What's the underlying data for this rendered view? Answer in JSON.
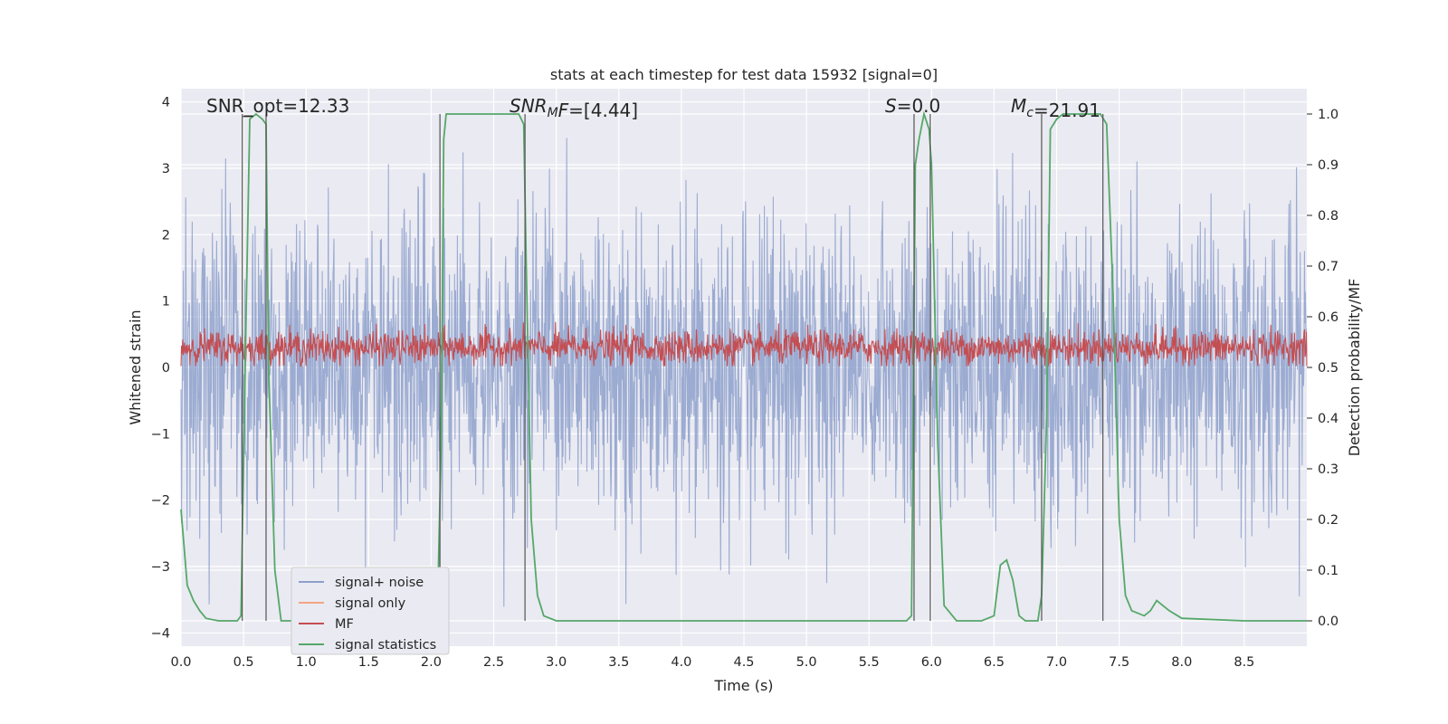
{
  "chart_data": {
    "type": "line",
    "title": "stats at each timestep for test data 15932 [signal=0]",
    "xlabel": "Time (s)",
    "ylabel_left": "Whitened strain",
    "ylabel_right": "Detection probability/MF",
    "xlim": [
      0.0,
      9.0
    ],
    "ylim_left": [
      -4.2,
      4.2
    ],
    "ylim_right": [
      -0.05,
      1.05
    ],
    "xticks": [
      "0.0",
      "0.5",
      "1.0",
      "1.5",
      "2.0",
      "2.5",
      "3.0",
      "3.5",
      "4.0",
      "4.5",
      "5.0",
      "5.5",
      "6.0",
      "6.5",
      "7.0",
      "7.5",
      "8.0",
      "8.5"
    ],
    "yticks_left": [
      "4",
      "3",
      "2",
      "1",
      "0",
      "−1",
      "−2",
      "−3",
      "−4"
    ],
    "yticks_right": [
      "1.0",
      "0.9",
      "0.8",
      "0.7",
      "0.6",
      "0.5",
      "0.4",
      "0.3",
      "0.2",
      "0.1",
      "0.0"
    ],
    "grid": true,
    "legend_position": "lower-left",
    "series": [
      {
        "name": "signal+ noise",
        "color": "#8da0cb",
        "axis": "left",
        "description_values": "whitened noise, amplitude roughly ±2 to ±4"
      },
      {
        "name": "signal only",
        "color": "#f4a582",
        "axis": "left",
        "values": []
      },
      {
        "name": "MF",
        "color": "#c44e52",
        "axis": "left",
        "description_values": "matched filter output around 0.1 to 0.7"
      },
      {
        "name": "signal statistics",
        "color": "#55a868",
        "axis": "right",
        "x": [
          0.0,
          0.05,
          0.1,
          0.15,
          0.2,
          0.3,
          0.4,
          0.45,
          0.48,
          0.52,
          0.55,
          0.6,
          0.65,
          0.68,
          0.7,
          0.75,
          0.8,
          0.9,
          1.0,
          1.5,
          2.0,
          2.05,
          2.08,
          2.1,
          2.12,
          2.15,
          2.3,
          2.6,
          2.7,
          2.74,
          2.76,
          2.8,
          2.85,
          2.9,
          3.0,
          4.0,
          5.0,
          5.5,
          5.8,
          5.84,
          5.87,
          5.9,
          5.94,
          5.98,
          6.0,
          6.05,
          6.1,
          6.2,
          6.3,
          6.4,
          6.5,
          6.55,
          6.6,
          6.65,
          6.7,
          6.75,
          6.8,
          6.85,
          6.88,
          6.92,
          6.95,
          7.0,
          7.05,
          7.3,
          7.35,
          7.4,
          7.45,
          7.5,
          7.55,
          7.6,
          7.7,
          7.75,
          7.8,
          7.85,
          7.9,
          8.0,
          8.5,
          9.0
        ],
        "y": [
          0.22,
          0.07,
          0.04,
          0.02,
          0.005,
          0.0,
          0.0,
          0.0,
          0.01,
          0.6,
          0.99,
          1.0,
          0.99,
          0.98,
          0.5,
          0.1,
          0.0,
          0.0,
          0.0,
          0.0,
          0.0,
          0.02,
          0.35,
          0.95,
          1.0,
          1.0,
          1.0,
          1.0,
          1.0,
          0.98,
          0.7,
          0.2,
          0.05,
          0.01,
          0.0,
          0.0,
          0.0,
          0.0,
          0.0,
          0.01,
          0.9,
          0.95,
          1.0,
          0.97,
          0.9,
          0.35,
          0.03,
          0.0,
          0.0,
          0.0,
          0.01,
          0.11,
          0.12,
          0.08,
          0.01,
          0.0,
          0.0,
          0.0,
          0.05,
          0.4,
          0.97,
          0.99,
          1.0,
          1.0,
          1.0,
          0.98,
          0.65,
          0.2,
          0.05,
          0.02,
          0.01,
          0.02,
          0.04,
          0.03,
          0.02,
          0.005,
          0.0,
          0.0
        ]
      }
    ],
    "vlines": [
      0.49,
      0.68,
      2.07,
      2.75,
      5.86,
      5.99,
      6.88,
      7.37
    ],
    "annotations": [
      {
        "text_parts": [
          {
            "t": "SNR_opt=12.33",
            "style": "normal"
          }
        ],
        "x": 0.2
      },
      {
        "text_parts": [
          {
            "t": "SNR",
            "style": "italic"
          },
          {
            "t": "M",
            "style": "italic-sub"
          },
          {
            "t": "F",
            "style": "italic"
          },
          {
            "t": "=[4.44]",
            "style": "normal"
          }
        ],
        "x": 2.6
      },
      {
        "text_parts": [
          {
            "t": "S",
            "style": "italic"
          },
          {
            "t": "=0.0",
            "style": "normal"
          }
        ],
        "x": 5.6
      },
      {
        "text_parts": [
          {
            "t": "M",
            "style": "italic"
          },
          {
            "t": "c",
            "style": "italic-sub"
          },
          {
            "t": "=21.91",
            "style": "normal"
          }
        ],
        "x": 6.6
      }
    ]
  }
}
